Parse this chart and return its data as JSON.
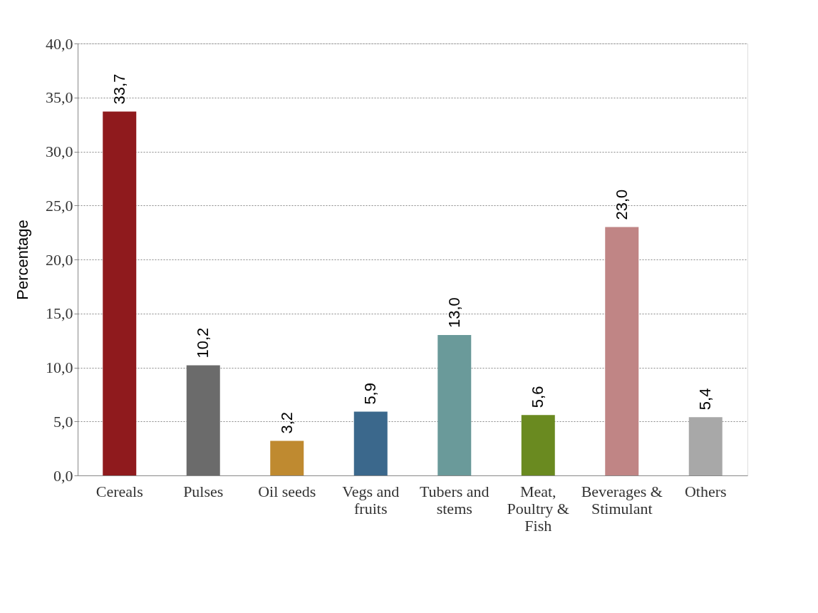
{
  "chart_data": {
    "type": "bar",
    "ylabel": "Percentage",
    "categories": [
      "Cereals",
      "Pulses",
      "Oil seeds",
      "Vegs and fruits",
      "Tubers and stems",
      "Meat, Poultry & Fish",
      "Beverages & Stimulant",
      "Others"
    ],
    "values": [
      33.7,
      10.2,
      3.2,
      5.9,
      13.0,
      5.6,
      23.0,
      5.4
    ],
    "value_labels": [
      "33,7",
      "10,2",
      "3,2",
      "5,9",
      "13,0",
      "5,6",
      "23,0",
      "5,4"
    ],
    "colors": [
      "#8f1a1d",
      "#6b6b6b",
      "#bf8a30",
      "#3b688c",
      "#6a9a9a",
      "#6a8a20",
      "#c08585",
      "#a8a8a8"
    ],
    "ylim": [
      0,
      40
    ],
    "yticks": [
      {
        "value": 0,
        "label": "0,0"
      },
      {
        "value": 5,
        "label": "5,0"
      },
      {
        "value": 10,
        "label": "10,0"
      },
      {
        "value": 15,
        "label": "15,0"
      },
      {
        "value": 20,
        "label": "20,0"
      },
      {
        "value": 25,
        "label": "25,0"
      },
      {
        "value": 30,
        "label": "30,0"
      },
      {
        "value": 35,
        "label": "35,0"
      },
      {
        "value": 40,
        "label": "40,0"
      }
    ],
    "grid": "y"
  }
}
